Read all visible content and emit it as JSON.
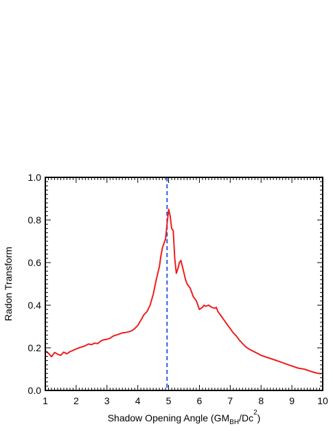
{
  "chart_data": {
    "type": "line",
    "xlabel": {
      "base": "Shadow Opening Angle (GM",
      "sub": "BH",
      "mid": "/Dc",
      "sup": "2",
      "end": ")"
    },
    "ylabel": "Radon Transform",
    "xlim": [
      1,
      10
    ],
    "ylim": [
      0,
      1
    ],
    "xticks": [
      1,
      2,
      3,
      4,
      5,
      6,
      7,
      8,
      9,
      10
    ],
    "xtick_labels": [
      "1",
      "2",
      "3",
      "4",
      "5",
      "6",
      "7",
      "8",
      "9",
      "10"
    ],
    "yticks": [
      0.0,
      0.2,
      0.4,
      0.6,
      0.8,
      1.0
    ],
    "ytick_labels": [
      "0.0",
      "0.2",
      "0.4",
      "0.6",
      "0.8",
      "1.0"
    ],
    "grid": false,
    "series": [
      {
        "color": "#ee1c1c",
        "x": [
          1.0,
          1.1,
          1.2,
          1.3,
          1.4,
          1.5,
          1.6,
          1.7,
          1.8,
          1.9,
          2.0,
          2.1,
          2.2,
          2.3,
          2.4,
          2.5,
          2.6,
          2.7,
          2.8,
          2.9,
          3.0,
          3.1,
          3.2,
          3.3,
          3.4,
          3.5,
          3.6,
          3.7,
          3.8,
          3.9,
          4.0,
          4.1,
          4.2,
          4.3,
          4.4,
          4.5,
          4.6,
          4.7,
          4.75,
          4.8,
          4.85,
          4.9,
          4.95,
          5.0,
          5.05,
          5.1,
          5.15,
          5.2,
          5.25,
          5.3,
          5.35,
          5.4,
          5.45,
          5.5,
          5.55,
          5.6,
          5.65,
          5.7,
          5.8,
          5.9,
          6.0,
          6.1,
          6.15,
          6.2,
          6.3,
          6.4,
          6.5,
          6.55,
          6.6,
          6.7,
          6.8,
          6.9,
          7.0,
          7.1,
          7.2,
          7.3,
          7.4,
          7.5,
          7.6,
          7.8,
          8.0,
          8.2,
          8.4,
          8.6,
          8.8,
          9.0,
          9.2,
          9.4,
          9.6,
          9.8,
          9.95
        ],
        "y": [
          0.185,
          0.175,
          0.158,
          0.178,
          0.17,
          0.165,
          0.18,
          0.172,
          0.182,
          0.188,
          0.195,
          0.2,
          0.205,
          0.21,
          0.218,
          0.215,
          0.222,
          0.22,
          0.232,
          0.238,
          0.24,
          0.245,
          0.255,
          0.26,
          0.265,
          0.27,
          0.272,
          0.275,
          0.28,
          0.29,
          0.305,
          0.33,
          0.355,
          0.37,
          0.4,
          0.45,
          0.52,
          0.58,
          0.63,
          0.67,
          0.69,
          0.71,
          0.78,
          0.85,
          0.82,
          0.76,
          0.75,
          0.62,
          0.55,
          0.57,
          0.6,
          0.61,
          0.58,
          0.55,
          0.52,
          0.5,
          0.49,
          0.48,
          0.44,
          0.42,
          0.38,
          0.39,
          0.4,
          0.395,
          0.4,
          0.39,
          0.385,
          0.39,
          0.37,
          0.35,
          0.33,
          0.31,
          0.29,
          0.27,
          0.255,
          0.235,
          0.22,
          0.205,
          0.195,
          0.18,
          0.165,
          0.155,
          0.145,
          0.135,
          0.125,
          0.115,
          0.105,
          0.1,
          0.09,
          0.082,
          0.078
        ]
      }
    ],
    "reference_lines": [
      {
        "orientation": "vertical",
        "x": 4.95,
        "style": "dashed",
        "color": "#2d5bea"
      }
    ]
  }
}
